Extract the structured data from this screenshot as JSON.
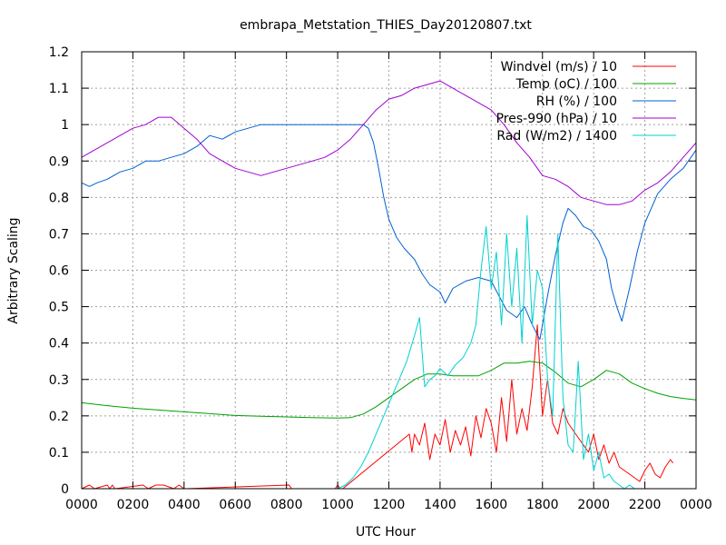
{
  "chart_data": {
    "type": "line",
    "title": "embrapa_Metstation_THIES_Day20120807.txt",
    "xlabel": "UTC Hour",
    "ylabel": "Arbitrary Scaling",
    "xlim": [
      0,
      24
    ],
    "ylim": [
      0,
      1.2
    ],
    "grid": true,
    "legend_position": "top-right",
    "x_ticks": [
      {
        "value": 0,
        "label": "0000"
      },
      {
        "value": 2,
        "label": "0200"
      },
      {
        "value": 4,
        "label": "0400"
      },
      {
        "value": 6,
        "label": "0600"
      },
      {
        "value": 8,
        "label": "0800"
      },
      {
        "value": 10,
        "label": "1000"
      },
      {
        "value": 12,
        "label": "1200"
      },
      {
        "value": 14,
        "label": "1400"
      },
      {
        "value": 16,
        "label": "1600"
      },
      {
        "value": 18,
        "label": "1800"
      },
      {
        "value": 20,
        "label": "2000"
      },
      {
        "value": 22,
        "label": "2200"
      },
      {
        "value": 24,
        "label": "0000"
      }
    ],
    "y_ticks": [
      {
        "value": 0,
        "label": "0"
      },
      {
        "value": 0.1,
        "label": "0.1"
      },
      {
        "value": 0.2,
        "label": "0.2"
      },
      {
        "value": 0.3,
        "label": "0.3"
      },
      {
        "value": 0.4,
        "label": "0.4"
      },
      {
        "value": 0.5,
        "label": "0.5"
      },
      {
        "value": 0.6,
        "label": "0.6"
      },
      {
        "value": 0.7,
        "label": "0.7"
      },
      {
        "value": 0.8,
        "label": "0.8"
      },
      {
        "value": 0.9,
        "label": "0.9"
      },
      {
        "value": 1,
        "label": "1"
      },
      {
        "value": 1.1,
        "label": "1.1"
      },
      {
        "value": 1.2,
        "label": "1.2"
      }
    ],
    "series": [
      {
        "name": "Windvel (m/s) / 10",
        "color": "#ff0000",
        "x": [
          0,
          0.3,
          0.5,
          1.0,
          1.1,
          1.2,
          1.3,
          2.4,
          2.6,
          2.9,
          3.2,
          3.6,
          3.8,
          4.0,
          4.1,
          8.1,
          8.2,
          9.9,
          10.0,
          10.1,
          10.2,
          12.8,
          12.9,
          13.0,
          13.2,
          13.4,
          13.6,
          13.8,
          14.0,
          14.2,
          14.4,
          14.6,
          14.8,
          15.0,
          15.2,
          15.4,
          15.6,
          15.8,
          16.0,
          16.2,
          16.4,
          16.6,
          16.8,
          17.0,
          17.2,
          17.4,
          17.6,
          17.8,
          18.0,
          18.2,
          18.4,
          18.6,
          18.8,
          19.0,
          19.2,
          19.4,
          19.6,
          19.8,
          20.0,
          20.2,
          20.4,
          20.6,
          20.8,
          21.0,
          21.2,
          21.4,
          21.6,
          21.8,
          22.0,
          22.2,
          22.4,
          22.6,
          22.8,
          23.0,
          23.1
        ],
        "values": [
          0,
          0.01,
          0,
          0.01,
          0,
          0.01,
          0,
          0.01,
          0,
          0.01,
          0.01,
          0,
          0.01,
          0,
          0,
          0.01,
          0,
          0,
          0.01,
          0,
          0,
          0.15,
          0.1,
          0.15,
          0.12,
          0.18,
          0.08,
          0.15,
          0.12,
          0.19,
          0.1,
          0.16,
          0.12,
          0.17,
          0.09,
          0.2,
          0.14,
          0.22,
          0.18,
          0.1,
          0.25,
          0.13,
          0.3,
          0.15,
          0.22,
          0.16,
          0.28,
          0.45,
          0.2,
          0.3,
          0.18,
          0.15,
          0.22,
          0.18,
          0.16,
          0.14,
          0.12,
          0.1,
          0.15,
          0.08,
          0.12,
          0.07,
          0.1,
          0.06,
          0.05,
          0.04,
          0.03,
          0.02,
          0.05,
          0.07,
          0.04,
          0.03,
          0.06,
          0.08,
          0.07
        ]
      },
      {
        "name": "Temp (oC) / 100",
        "color": "#00a000",
        "x": [
          0,
          1,
          2,
          3,
          4,
          5,
          6,
          7,
          8,
          9,
          10,
          10.5,
          11,
          11.5,
          12,
          12.5,
          13,
          13.5,
          14,
          14.5,
          15,
          15.5,
          16,
          16.5,
          17,
          17.5,
          18,
          18.5,
          19,
          19.5,
          20,
          20.5,
          21,
          21.5,
          22,
          22.5,
          23,
          23.5,
          24
        ],
        "values": [
          0.236,
          0.228,
          0.221,
          0.216,
          0.211,
          0.206,
          0.201,
          0.199,
          0.197,
          0.195,
          0.194,
          0.195,
          0.205,
          0.225,
          0.25,
          0.275,
          0.3,
          0.315,
          0.315,
          0.31,
          0.31,
          0.31,
          0.325,
          0.345,
          0.345,
          0.35,
          0.345,
          0.32,
          0.29,
          0.28,
          0.3,
          0.325,
          0.315,
          0.29,
          0.275,
          0.262,
          0.253,
          0.248,
          0.244
        ]
      },
      {
        "name": "RH (%) / 100",
        "color": "#0060d0",
        "x": [
          0,
          0.3,
          0.6,
          1.0,
          1.5,
          2.0,
          2.5,
          3.0,
          3.5,
          4.0,
          4.5,
          5.0,
          5.5,
          6.0,
          6.5,
          7.0,
          7.5,
          8.0,
          8.5,
          9.0,
          9.5,
          10.0,
          10.5,
          11.0,
          11.2,
          11.4,
          11.6,
          11.8,
          12.0,
          12.3,
          12.6,
          13.0,
          13.3,
          13.6,
          14.0,
          14.2,
          14.5,
          15.0,
          15.5,
          16.0,
          16.3,
          16.6,
          17.0,
          17.3,
          17.6,
          17.9,
          18.2,
          18.5,
          18.8,
          19.0,
          19.3,
          19.6,
          19.9,
          20.2,
          20.5,
          20.7,
          20.9,
          21.1,
          21.4,
          21.7,
          22.0,
          22.5,
          23.0,
          23.5,
          24.0
        ],
        "values": [
          0.84,
          0.83,
          0.84,
          0.85,
          0.87,
          0.88,
          0.9,
          0.9,
          0.91,
          0.92,
          0.94,
          0.97,
          0.96,
          0.98,
          0.99,
          1.0,
          1.0,
          1.0,
          1.0,
          1.0,
          1.0,
          1.0,
          1.0,
          1.0,
          0.99,
          0.95,
          0.88,
          0.8,
          0.74,
          0.69,
          0.66,
          0.63,
          0.59,
          0.56,
          0.54,
          0.51,
          0.55,
          0.57,
          0.58,
          0.57,
          0.53,
          0.49,
          0.47,
          0.5,
          0.45,
          0.41,
          0.53,
          0.64,
          0.73,
          0.77,
          0.75,
          0.72,
          0.71,
          0.68,
          0.63,
          0.55,
          0.5,
          0.46,
          0.55,
          0.65,
          0.73,
          0.81,
          0.85,
          0.88,
          0.93
        ]
      },
      {
        "name": "Pres-990 (hPa) / 10",
        "color": "#a000d0",
        "x": [
          0,
          0.5,
          1.0,
          1.5,
          2.0,
          2.5,
          3.0,
          3.5,
          4.0,
          4.5,
          5.0,
          5.5,
          6.0,
          6.5,
          7.0,
          7.5,
          8.0,
          8.5,
          9.0,
          9.5,
          10.0,
          10.5,
          11.0,
          11.5,
          12.0,
          12.5,
          13.0,
          13.5,
          14.0,
          14.5,
          15.0,
          15.5,
          16.0,
          16.5,
          17.0,
          17.5,
          18.0,
          18.5,
          19.0,
          19.5,
          20.0,
          20.5,
          21.0,
          21.5,
          22.0,
          22.5,
          23.0,
          23.5,
          24.0
        ],
        "values": [
          0.91,
          0.93,
          0.95,
          0.97,
          0.99,
          1.0,
          1.02,
          1.02,
          0.99,
          0.96,
          0.92,
          0.9,
          0.88,
          0.87,
          0.86,
          0.87,
          0.88,
          0.89,
          0.9,
          0.91,
          0.93,
          0.96,
          1.0,
          1.04,
          1.07,
          1.08,
          1.1,
          1.11,
          1.12,
          1.1,
          1.08,
          1.06,
          1.04,
          1.0,
          0.95,
          0.91,
          0.86,
          0.85,
          0.83,
          0.8,
          0.79,
          0.78,
          0.78,
          0.79,
          0.82,
          0.84,
          0.87,
          0.91,
          0.95
        ]
      },
      {
        "name": "Rad (W/m2) / 1400",
        "color": "#00d0d0",
        "x": [
          0,
          9.8,
          10.0,
          10.3,
          10.6,
          10.9,
          11.2,
          11.5,
          11.8,
          12.1,
          12.4,
          12.7,
          13.0,
          13.2,
          13.4,
          13.6,
          13.8,
          14.0,
          14.3,
          14.6,
          14.9,
          15.2,
          15.4,
          15.6,
          15.8,
          16.0,
          16.2,
          16.4,
          16.6,
          16.8,
          17.0,
          17.2,
          17.4,
          17.6,
          17.8,
          18.0,
          18.2,
          18.4,
          18.6,
          18.8,
          19.0,
          19.2,
          19.4,
          19.6,
          19.8,
          20.0,
          20.2,
          20.4,
          20.6,
          20.8,
          21.0,
          21.2,
          21.4,
          21.6,
          21.8,
          22.0,
          24.0
        ],
        "values": [
          0,
          0,
          0.0,
          0.01,
          0.03,
          0.06,
          0.1,
          0.15,
          0.2,
          0.25,
          0.3,
          0.35,
          0.42,
          0.47,
          0.28,
          0.3,
          0.31,
          0.33,
          0.31,
          0.34,
          0.36,
          0.4,
          0.45,
          0.6,
          0.72,
          0.55,
          0.65,
          0.45,
          0.7,
          0.5,
          0.66,
          0.4,
          0.75,
          0.45,
          0.6,
          0.55,
          0.3,
          0.2,
          0.7,
          0.25,
          0.12,
          0.1,
          0.35,
          0.08,
          0.15,
          0.05,
          0.1,
          0.03,
          0.04,
          0.02,
          0.01,
          0.0,
          0.01,
          0.0,
          0.0,
          0.0,
          0
        ]
      }
    ]
  }
}
